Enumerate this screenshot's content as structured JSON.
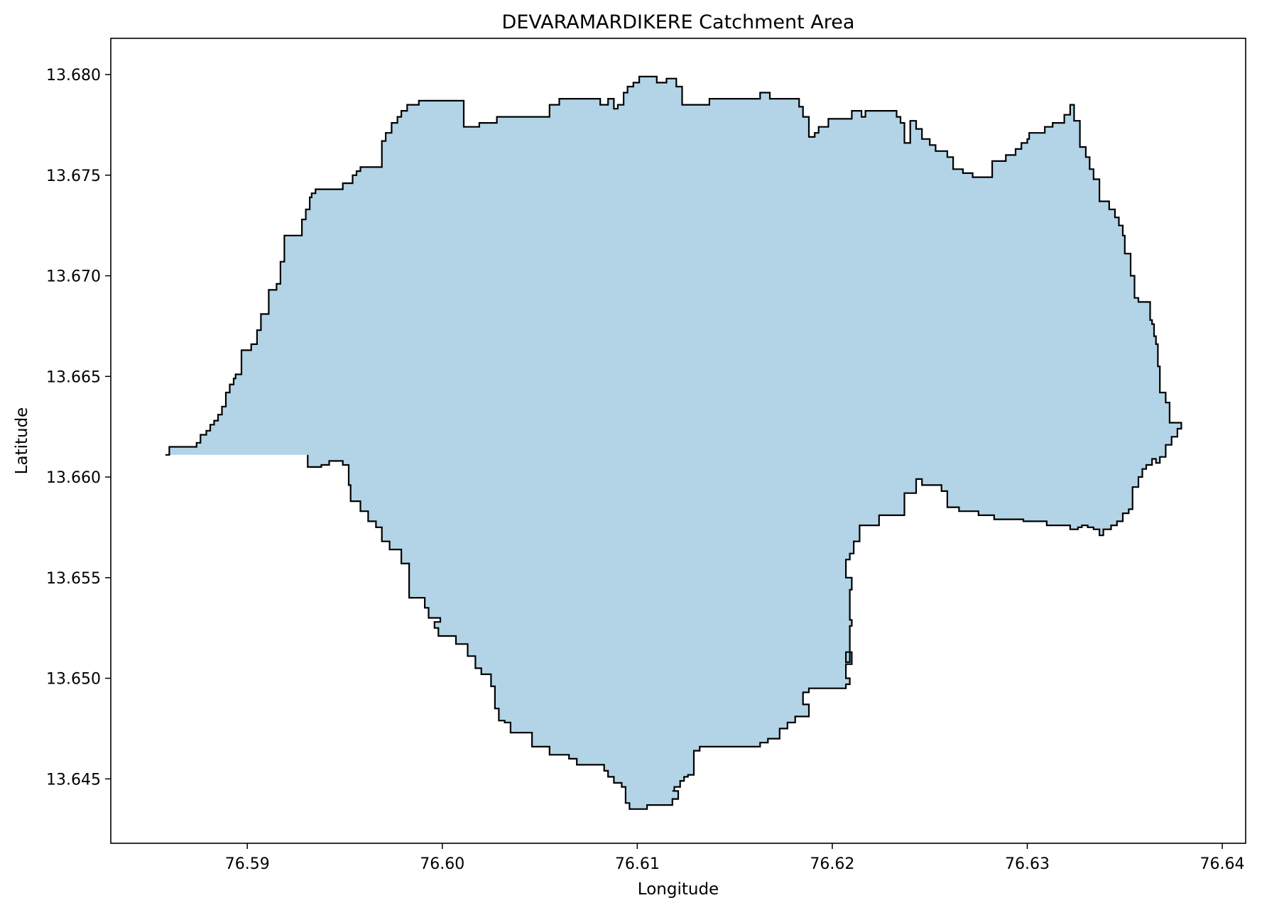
{
  "chart_data": {
    "type": "area",
    "title": "DEVARAMARDIKERE Catchment Area",
    "xlabel": "Longitude",
    "ylabel": "Latitude",
    "xlim": [
      76.583,
      76.6412
    ],
    "ylim": [
      13.6418,
      13.6818
    ],
    "xticks": [
      76.59,
      76.6,
      76.61,
      76.62,
      76.63,
      76.64
    ],
    "xtick_labels": [
      "76.59",
      "76.60",
      "76.61",
      "76.62",
      "76.63",
      "76.64"
    ],
    "yticks": [
      13.645,
      13.65,
      13.655,
      13.66,
      13.665,
      13.67,
      13.675,
      13.68
    ],
    "ytick_labels": [
      "13.645",
      "13.650",
      "13.655",
      "13.660",
      "13.665",
      "13.670",
      "13.675",
      "13.680"
    ],
    "grid": false,
    "fill_color": "#b2d4e6",
    "edge_color": "#000000",
    "boundary": {
      "lon": [
        76.5858,
        76.586,
        76.586,
        76.5874,
        76.5874,
        76.5876,
        76.5876,
        76.5879,
        76.5879,
        76.5881,
        76.5881,
        76.5883,
        76.5883,
        76.5885,
        76.5885,
        76.5887,
        76.5887,
        76.5889,
        76.5889,
        76.5891,
        76.5891,
        76.5893,
        76.5893,
        76.5894,
        76.5894,
        76.5897,
        76.5897,
        76.5902,
        76.5902,
        76.5905,
        76.5905,
        76.5907,
        76.5907,
        76.5911,
        76.5911,
        76.5915,
        76.5915,
        76.5917,
        76.5917,
        76.5919,
        76.5919,
        76.5928,
        76.5928,
        76.593,
        76.593,
        76.5932,
        76.5932,
        76.5933,
        76.5933,
        76.5935,
        76.5935,
        76.5937,
        76.5937,
        76.5939,
        76.5939,
        76.5949,
        76.5949,
        76.5954,
        76.5954,
        76.5956,
        76.5956,
        76.5958,
        76.5958,
        76.5961,
        76.5961,
        76.5969,
        76.5969,
        76.5971,
        76.5971,
        76.5974,
        76.5974,
        76.5977,
        76.5977,
        76.5979,
        76.5979,
        76.5982,
        76.5982,
        76.5988,
        76.5988,
        76.6011,
        76.6011,
        76.6019,
        76.6019,
        76.6028,
        76.6028,
        76.6055,
        76.6055,
        76.606,
        76.606,
        76.6063,
        76.6063,
        76.6081,
        76.6081,
        76.6085,
        76.6085,
        76.6088,
        76.6088,
        76.609,
        76.609,
        76.6093,
        76.6093,
        76.6095,
        76.6095,
        76.6098,
        76.6098,
        76.6101,
        76.6101,
        76.611,
        76.611,
        76.6115,
        76.6115,
        76.612,
        76.612,
        76.6123,
        76.6123,
        76.6137,
        76.6137,
        76.6163,
        76.6163,
        76.6168,
        76.6168,
        76.6183,
        76.6183,
        76.6185,
        76.6185,
        76.6188,
        76.6188,
        76.6191,
        76.6191,
        76.6193,
        76.6193,
        76.6198,
        76.6198,
        76.621,
        76.621,
        76.6213,
        76.6213,
        76.6215,
        76.6215,
        76.6217,
        76.6217,
        76.622,
        76.622,
        76.6233,
        76.6233,
        76.6235,
        76.6235,
        76.6237,
        76.6237,
        76.624,
        76.624,
        76.6243,
        76.6243,
        76.6246,
        76.6246,
        76.625,
        76.625,
        76.6253,
        76.6253,
        76.6259,
        76.6259,
        76.6262,
        76.6262,
        76.6264,
        76.6264,
        76.6267,
        76.6267,
        76.6272,
        76.6272,
        76.6279,
        76.6279,
        76.6282,
        76.6282,
        76.6285,
        76.6285,
        76.6289,
        76.6289,
        76.6294,
        76.6294,
        76.6297,
        76.6297,
        76.63,
        76.63,
        76.6301,
        76.6301,
        76.6309,
        76.6309,
        76.6313,
        76.6313,
        76.6319,
        76.6319,
        76.6322,
        76.6322,
        76.6324,
        76.6324,
        76.6327,
        76.6327,
        76.633,
        76.633,
        76.6332,
        76.6332,
        76.6334,
        76.6334,
        76.6337,
        76.6337,
        76.6342,
        76.6342,
        76.6345,
        76.6345,
        76.6347,
        76.6347,
        76.6349,
        76.6349,
        76.635,
        76.635,
        76.6353,
        76.6353,
        76.6355,
        76.6355,
        76.6357,
        76.6357,
        76.6363,
        76.6363,
        76.6363,
        76.6363,
        76.6364,
        76.6364,
        76.6365,
        76.6365,
        76.6366,
        76.6366,
        76.6367,
        76.6367,
        76.6368,
        76.6368,
        76.6368,
        76.6368,
        76.6371,
        76.6371,
        76.6373,
        76.6373,
        76.6379,
        76.6379,
        76.6377,
        76.6377,
        76.6374,
        76.6374,
        76.6371,
        76.6371,
        76.6368,
        76.6368,
        76.6366,
        76.6366,
        76.6364,
        76.6364,
        76.6361,
        76.6361,
        76.6359,
        76.6359,
        76.6357,
        76.6357,
        76.6354,
        76.6354,
        76.6352,
        76.6352,
        76.6349,
        76.6349,
        76.6346,
        76.6346,
        76.6343,
        76.6343,
        76.6339,
        76.6339,
        76.6337,
        76.6337,
        76.6334,
        76.6334,
        76.6331,
        76.6331,
        76.6328,
        76.6328,
        76.6326,
        76.6326,
        76.6322,
        76.6322,
        76.631,
        76.631,
        76.6298,
        76.6298,
        76.6283,
        76.6283,
        76.6275,
        76.6275,
        76.6265,
        76.6265,
        76.6259,
        76.6259,
        76.6256,
        76.6256,
        76.6253,
        76.6253,
        76.6249,
        76.6249,
        76.6246,
        76.6246,
        76.6243,
        76.6243,
        76.6237,
        76.6237,
        76.6224,
        76.6224,
        76.6214,
        76.6214,
        76.6211,
        76.6211,
        76.6209,
        76.6209,
        76.6207,
        76.6207,
        76.621,
        76.621,
        76.6209,
        76.6209,
        76.621,
        76.621,
        76.6209,
        76.6209,
        76.6207,
        76.6207,
        76.621,
        76.621,
        76.6207,
        76.6207,
        76.6209,
        76.6209,
        76.6207,
        76.6207,
        76.6188,
        76.6188,
        76.6185,
        76.6185,
        76.6188,
        76.6188,
        76.6181,
        76.6181,
        76.6177,
        76.6177,
        76.6173,
        76.6173,
        76.6167,
        76.6167,
        76.6163,
        76.6163,
        76.6132,
        76.6132,
        76.6129,
        76.6129,
        76.6126,
        76.6126,
        76.6124,
        76.6124,
        76.6122,
        76.6122,
        76.6119,
        76.6119,
        76.6118,
        76.6118,
        76.6121,
        76.6121,
        76.6118,
        76.6118,
        76.6105,
        76.6105,
        76.6096,
        76.6096,
        76.6094,
        76.6094,
        76.6092,
        76.6092,
        76.6088,
        76.6088,
        76.6085,
        76.6085,
        76.6083,
        76.6083,
        76.6069,
        76.6069,
        76.6065,
        76.6065,
        76.6055,
        76.6055,
        76.6046,
        76.6046,
        76.6035,
        76.6035,
        76.6032,
        76.6032,
        76.6029,
        76.6029,
        76.6027,
        76.6027,
        76.6025,
        76.6025,
        76.6022,
        76.6022,
        76.602,
        76.602,
        76.6017,
        76.6017,
        76.6013,
        76.6013,
        76.6007,
        76.6007,
        76.5998,
        76.5998,
        76.5996,
        76.5996,
        76.5999,
        76.5999,
        76.5993,
        76.5993,
        76.5991,
        76.5991,
        76.5983,
        76.5983,
        76.5979,
        76.5979,
        76.5973,
        76.5973,
        76.5969,
        76.5969,
        76.5966,
        76.5966,
        76.5962,
        76.5962,
        76.5958,
        76.5958,
        76.5953,
        76.5953,
        76.5952,
        76.5952,
        76.5949,
        76.5949,
        76.5944,
        76.5944,
        76.5942,
        76.5942,
        76.5938,
        76.5938,
        76.5934,
        76.5934,
        76.5931,
        76.5931,
        76.5929,
        76.5929,
        76.5926,
        76.5926,
        76.5924,
        76.5924,
        76.5922,
        76.5922,
        76.5918,
        76.5918,
        76.5916,
        76.5916,
        76.5885,
        76.5885,
        76.5879,
        76.5879,
        76.5875,
        76.5875,
        76.586,
        76.586,
        76.5858
      ],
      "lat": [
        13.6611,
        13.6611,
        13.6615,
        13.6615,
        13.6617,
        13.6617,
        13.6621,
        13.6621,
        13.6623,
        13.6623,
        13.6626,
        13.6626,
        13.6628,
        13.6628,
        13.6631,
        13.6631,
        13.6635,
        13.6635,
        13.6642,
        13.6642,
        13.6646,
        13.6646,
        13.6649,
        13.6649,
        13.6651,
        13.6651,
        13.6663,
        13.6663,
        13.6666,
        13.6666,
        13.6673,
        13.6673,
        13.6681,
        13.6681,
        13.6693,
        13.6693,
        13.6696,
        13.6696,
        13.6707,
        13.6707,
        13.672,
        13.672,
        13.6728,
        13.6728,
        13.6733,
        13.6733,
        13.6739,
        13.6739,
        13.6741,
        13.6741,
        13.6743,
        13.6743,
        13.6743,
        13.6743,
        13.6743,
        13.6743,
        13.6746,
        13.6746,
        13.675,
        13.675,
        13.6752,
        13.6752,
        13.6754,
        13.6754,
        13.6754,
        13.6754,
        13.6767,
        13.6767,
        13.6771,
        13.6771,
        13.6776,
        13.6776,
        13.6779,
        13.6779,
        13.6782,
        13.6782,
        13.6785,
        13.6785,
        13.6787,
        13.6787,
        13.6774,
        13.6774,
        13.6776,
        13.6776,
        13.6779,
        13.6779,
        13.6785,
        13.6785,
        13.6788,
        13.6788,
        13.6788,
        13.6788,
        13.6785,
        13.6785,
        13.6788,
        13.6788,
        13.6783,
        13.6783,
        13.6785,
        13.6785,
        13.6791,
        13.6791,
        13.6794,
        13.6794,
        13.6796,
        13.6796,
        13.6799,
        13.6799,
        13.6796,
        13.6796,
        13.6798,
        13.6798,
        13.6794,
        13.6794,
        13.6785,
        13.6785,
        13.6788,
        13.6788,
        13.6791,
        13.6791,
        13.6788,
        13.6788,
        13.6784,
        13.6784,
        13.6779,
        13.6779,
        13.6769,
        13.6769,
        13.6771,
        13.6771,
        13.6774,
        13.6774,
        13.6778,
        13.6778,
        13.6782,
        13.6782,
        13.6782,
        13.6782,
        13.6779,
        13.6779,
        13.6782,
        13.6782,
        13.6782,
        13.6782,
        13.6779,
        13.6779,
        13.6776,
        13.6776,
        13.6766,
        13.6766,
        13.6777,
        13.6777,
        13.6773,
        13.6773,
        13.6768,
        13.6768,
        13.6765,
        13.6765,
        13.6762,
        13.6762,
        13.6759,
        13.6759,
        13.6753,
        13.6753,
        13.6753,
        13.6753,
        13.6751,
        13.6751,
        13.6749,
        13.6749,
        13.6749,
        13.6749,
        13.6757,
        13.6757,
        13.6757,
        13.6757,
        13.676,
        13.676,
        13.6763,
        13.6763,
        13.6766,
        13.6766,
        13.6768,
        13.6768,
        13.6771,
        13.6771,
        13.6774,
        13.6774,
        13.6776,
        13.6776,
        13.678,
        13.678,
        13.6785,
        13.6785,
        13.6777,
        13.6777,
        13.6764,
        13.6764,
        13.6759,
        13.6759,
        13.6753,
        13.6753,
        13.6748,
        13.6748,
        13.6737,
        13.6737,
        13.6733,
        13.6733,
        13.6729,
        13.6729,
        13.6725,
        13.6725,
        13.672,
        13.672,
        13.6711,
        13.6711,
        13.67,
        13.67,
        13.6689,
        13.6689,
        13.6687,
        13.6687,
        13.6683,
        13.6683,
        13.6678,
        13.6678,
        13.6676,
        13.6676,
        13.667,
        13.667,
        13.6666,
        13.6666,
        13.6655,
        13.6655,
        13.6645,
        13.6645,
        13.6642,
        13.6642,
        13.6637,
        13.6637,
        13.6627,
        13.6627,
        13.6624,
        13.6624,
        13.662,
        13.662,
        13.6616,
        13.6616,
        13.661,
        13.661,
        13.6607,
        13.6607,
        13.6609,
        13.6609,
        13.6606,
        13.6606,
        13.6604,
        13.6604,
        13.66,
        13.66,
        13.6595,
        13.6595,
        13.6584,
        13.6584,
        13.6582,
        13.6582,
        13.6578,
        13.6578,
        13.6576,
        13.6576,
        13.6574,
        13.6574,
        13.6571,
        13.6571,
        13.6574,
        13.6574,
        13.6575,
        13.6575,
        13.6576,
        13.6576,
        13.6575,
        13.6575,
        13.6574,
        13.6574,
        13.6576,
        13.6576,
        13.6578,
        13.6578,
        13.6579,
        13.6579,
        13.6581,
        13.6581,
        13.6583,
        13.6583,
        13.6585,
        13.6585,
        13.6593,
        13.6593,
        13.6596,
        13.6596,
        13.6596,
        13.6596,
        13.6596,
        13.6596,
        13.6599,
        13.6599,
        13.6592,
        13.6592,
        13.6581,
        13.6581,
        13.6576,
        13.6576,
        13.6568,
        13.6568,
        13.6562,
        13.6562,
        13.6559,
        13.6559,
        13.655,
        13.655,
        13.6544,
        13.6544,
        13.6529,
        13.6529,
        13.6526,
        13.6526,
        13.6508,
        13.6508,
        13.6513,
        13.6513,
        13.6507,
        13.6507,
        13.65,
        13.65,
        13.6497,
        13.6497,
        13.6495,
        13.6495,
        13.6493,
        13.6493,
        13.6487,
        13.6487,
        13.6481,
        13.6481,
        13.6478,
        13.6478,
        13.6475,
        13.6475,
        13.647,
        13.647,
        13.6468,
        13.6468,
        13.6466,
        13.6466,
        13.6464,
        13.6464,
        13.6452,
        13.6452,
        13.6451,
        13.6451,
        13.6449,
        13.6449,
        13.6446,
        13.6446,
        13.6444,
        13.6444,
        13.6444,
        13.6444,
        13.644,
        13.644,
        13.6437,
        13.6437,
        13.6435,
        13.6435,
        13.6438,
        13.6438,
        13.6446,
        13.6446,
        13.6448,
        13.6448,
        13.6451,
        13.6451,
        13.6454,
        13.6454,
        13.6457,
        13.6457,
        13.646,
        13.646,
        13.6462,
        13.6462,
        13.6466,
        13.6466,
        13.6473,
        13.6473,
        13.6478,
        13.6478,
        13.6479,
        13.6479,
        13.6485,
        13.6485,
        13.6496,
        13.6496,
        13.6502,
        13.6502,
        13.6502,
        13.6502,
        13.6505,
        13.6505,
        13.6511,
        13.6511,
        13.6517,
        13.6517,
        13.6521,
        13.6521,
        13.6525,
        13.6525,
        13.6528,
        13.6528,
        13.653,
        13.653,
        13.6535,
        13.6535,
        13.654,
        13.654,
        13.6557,
        13.6557,
        13.6564,
        13.6564,
        13.6568,
        13.6568,
        13.6575,
        13.6575,
        13.6578,
        13.6578,
        13.6583,
        13.6583,
        13.6588,
        13.6588,
        13.6596,
        13.6596,
        13.6606,
        13.6606,
        13.6608,
        13.6608,
        13.6608,
        13.6608,
        13.6606,
        13.6606,
        13.6605,
        13.6605,
        13.6605,
        13.6605,
        13.6611
      ]
    }
  }
}
